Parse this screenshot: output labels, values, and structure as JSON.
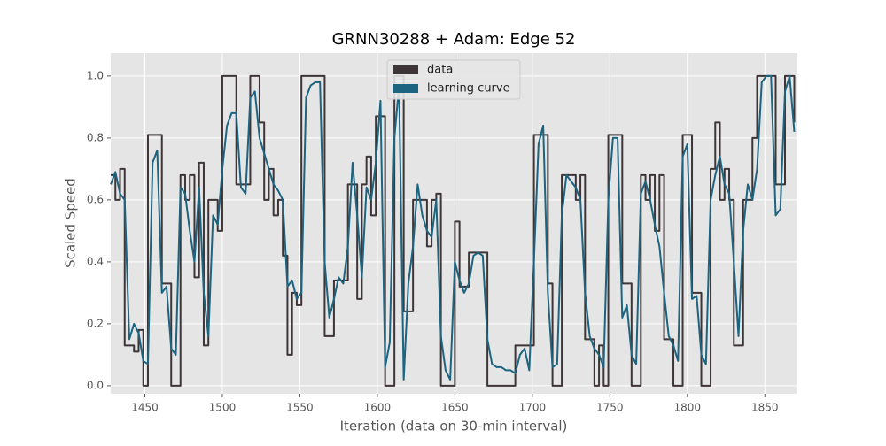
{
  "chart_data": {
    "type": "line",
    "title": "GRNN30288 + Adam: Edge 52",
    "x_label": "Iteration (data on 30-min interval)",
    "y_label": "Scaled Speed",
    "x": [
      1428,
      1431,
      1434,
      1437,
      1440,
      1443,
      1446,
      1449,
      1452,
      1455,
      1458,
      1461,
      1464,
      1467,
      1470,
      1473,
      1476,
      1479,
      1482,
      1485,
      1488,
      1491,
      1494,
      1497,
      1500,
      1503,
      1506,
      1509,
      1512,
      1515,
      1518,
      1521,
      1524,
      1527,
      1530,
      1533,
      1536,
      1539,
      1542,
      1545,
      1548,
      1551,
      1554,
      1557,
      1560,
      1563,
      1566,
      1569,
      1572,
      1575,
      1578,
      1581,
      1584,
      1587,
      1590,
      1593,
      1596,
      1599,
      1602,
      1605,
      1608,
      1611,
      1614,
      1617,
      1620,
      1623,
      1626,
      1629,
      1632,
      1635,
      1638,
      1641,
      1644,
      1647,
      1650,
      1653,
      1656,
      1659,
      1662,
      1665,
      1668,
      1671,
      1674,
      1677,
      1680,
      1683,
      1686,
      1689,
      1692,
      1695,
      1698,
      1701,
      1704,
      1707,
      1710,
      1713,
      1716,
      1719,
      1722,
      1725,
      1728,
      1731,
      1734,
      1737,
      1740,
      1743,
      1746,
      1749,
      1752,
      1755,
      1758,
      1761,
      1764,
      1767,
      1770,
      1773,
      1776,
      1779,
      1782,
      1785,
      1788,
      1791,
      1794,
      1797,
      1800,
      1803,
      1806,
      1809,
      1812,
      1815,
      1818,
      1821,
      1824,
      1827,
      1830,
      1833,
      1836,
      1839,
      1842,
      1845,
      1848,
      1851,
      1854,
      1857,
      1860,
      1863,
      1866,
      1869
    ],
    "series": [
      {
        "name": "data",
        "color": "#3d3538",
        "drawstyle": "steps-post",
        "values": [
          0.68,
          0.6,
          0.7,
          0.13,
          0.13,
          0.11,
          0.18,
          0.0,
          0.81,
          0.81,
          0.81,
          0.33,
          0.33,
          0.0,
          0.0,
          0.68,
          0.6,
          0.68,
          0.35,
          0.72,
          0.13,
          0.6,
          0.6,
          0.5,
          1.0,
          1.0,
          1.0,
          0.65,
          0.65,
          0.65,
          1.0,
          1.0,
          0.85,
          0.6,
          0.7,
          0.55,
          0.6,
          0.42,
          0.1,
          0.3,
          0.26,
          1.0,
          1.0,
          1.0,
          1.0,
          1.0,
          0.16,
          0.16,
          0.34,
          0.34,
          0.34,
          0.65,
          0.65,
          0.28,
          0.65,
          0.74,
          0.55,
          0.87,
          0.87,
          0.0,
          0.0,
          1.0,
          1.0,
          0.24,
          0.24,
          0.6,
          0.6,
          0.6,
          0.45,
          0.6,
          0.62,
          0.0,
          0.0,
          0.0,
          0.53,
          0.32,
          0.32,
          0.43,
          0.43,
          0.43,
          0.43,
          0.0,
          0.0,
          0.0,
          0.0,
          0.0,
          0.0,
          0.13,
          0.13,
          0.13,
          0.13,
          0.81,
          0.81,
          0.81,
          0.33,
          0.0,
          0.0,
          0.68,
          0.68,
          0.68,
          0.6,
          0.68,
          0.15,
          0.15,
          0.0,
          0.13,
          0.0,
          0.81,
          0.81,
          0.81,
          0.33,
          0.33,
          0.0,
          0.0,
          0.68,
          0.6,
          0.68,
          0.5,
          0.68,
          0.15,
          0.15,
          0.0,
          0.0,
          0.81,
          0.81,
          0.3,
          0.3,
          0.0,
          0.0,
          0.7,
          0.85,
          0.6,
          0.7,
          0.6,
          0.13,
          0.13,
          0.6,
          0.6,
          0.8,
          1.0,
          1.0,
          1.0,
          1.0,
          0.65,
          0.65,
          1.0,
          1.0,
          0.85
        ]
      },
      {
        "name": "learning curve",
        "color": "#1c6480",
        "drawstyle": "default",
        "values": [
          0.65,
          0.69,
          0.62,
          0.6,
          0.15,
          0.2,
          0.17,
          0.08,
          0.07,
          0.72,
          0.76,
          0.3,
          0.32,
          0.12,
          0.1,
          0.64,
          0.62,
          0.5,
          0.4,
          0.64,
          0.3,
          0.16,
          0.55,
          0.52,
          0.7,
          0.84,
          0.88,
          0.88,
          0.64,
          0.62,
          0.93,
          0.95,
          0.8,
          0.75,
          0.7,
          0.65,
          0.63,
          0.6,
          0.32,
          0.34,
          0.28,
          0.3,
          0.93,
          0.97,
          0.98,
          0.98,
          0.4,
          0.22,
          0.28,
          0.35,
          0.33,
          0.45,
          0.72,
          0.55,
          0.35,
          0.64,
          0.6,
          0.72,
          0.92,
          0.06,
          0.14,
          0.8,
          0.97,
          0.02,
          0.33,
          0.45,
          0.65,
          0.55,
          0.5,
          0.48,
          0.6,
          0.16,
          0.05,
          0.02,
          0.4,
          0.34,
          0.3,
          0.33,
          0.42,
          0.43,
          0.42,
          0.15,
          0.07,
          0.06,
          0.06,
          0.05,
          0.05,
          0.04,
          0.1,
          0.12,
          0.05,
          0.4,
          0.78,
          0.84,
          0.3,
          0.06,
          0.07,
          0.55,
          0.68,
          0.66,
          0.64,
          0.6,
          0.3,
          0.16,
          0.12,
          0.1,
          0.06,
          0.6,
          0.8,
          0.8,
          0.22,
          0.26,
          0.1,
          0.07,
          0.62,
          0.66,
          0.6,
          0.52,
          0.45,
          0.3,
          0.16,
          0.13,
          0.08,
          0.74,
          0.78,
          0.28,
          0.29,
          0.1,
          0.07,
          0.6,
          0.68,
          0.74,
          0.65,
          0.62,
          0.4,
          0.16,
          0.5,
          0.65,
          0.6,
          0.7,
          0.98,
          1.0,
          1.0,
          0.55,
          0.57,
          0.95,
          1.0,
          0.82
        ]
      }
    ],
    "xlim": [
      1428,
      1871
    ],
    "ylim": [
      -0.026,
      1.074
    ],
    "xticks": [
      1450,
      1500,
      1550,
      1600,
      1650,
      1700,
      1750,
      1800,
      1850
    ],
    "yticks": [
      {
        "value": 0,
        "label": "0.0"
      },
      {
        "value": 0.2,
        "label": "0.2"
      },
      {
        "value": 0.4,
        "label": "0.4"
      },
      {
        "value": 0.6,
        "label": "0.6"
      },
      {
        "value": 0.8,
        "label": "0.8"
      },
      {
        "value": 1,
        "label": "1.0"
      }
    ],
    "grid": true,
    "legend": "upper center"
  }
}
